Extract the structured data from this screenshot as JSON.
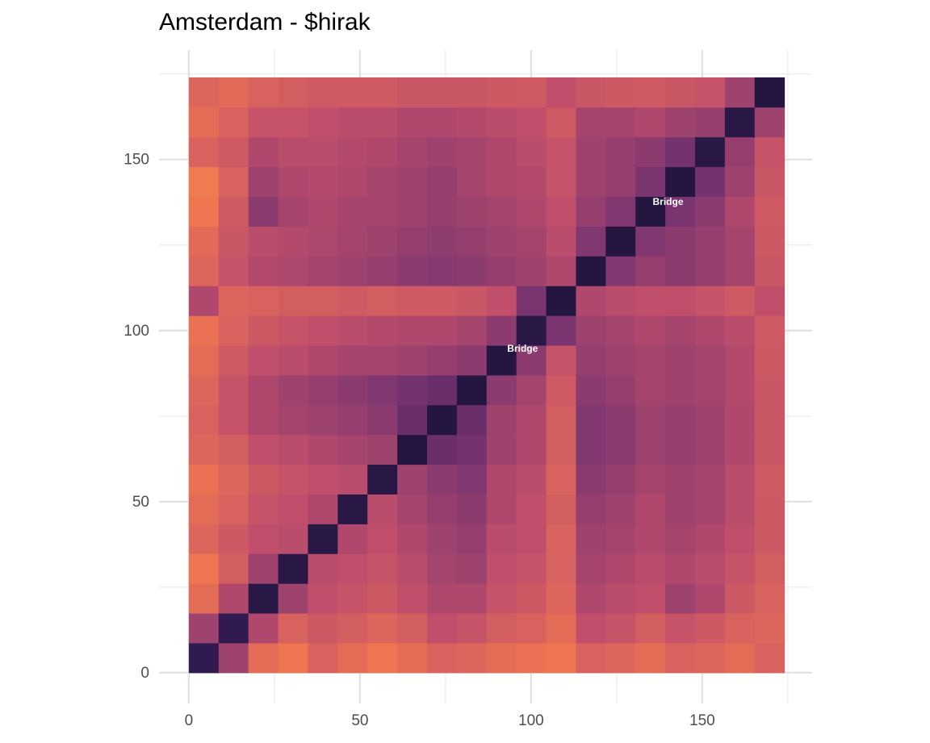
{
  "chart_data": {
    "type": "heatmap",
    "title": "Amsterdam - $hirak",
    "xlim": [
      -8.7,
      182.1
    ],
    "ylim": [
      -9,
      182
    ],
    "xticks": [
      0,
      50,
      100,
      150
    ],
    "yticks": [
      0,
      50,
      100,
      150
    ],
    "xminor": [
      25,
      75,
      125,
      175
    ],
    "yminor": [
      25,
      75,
      125,
      175
    ],
    "grid": true,
    "x_bins": [
      0,
      8.7,
      17.4,
      26.1,
      34.8,
      43.5,
      52.2,
      60.9,
      69.6,
      78.3,
      87,
      95.7,
      104.4,
      113.1,
      121.8,
      130.5,
      139.2,
      147.9,
      156.6,
      165.3,
      174
    ],
    "y_bins": [
      0,
      8.7,
      17.4,
      26.1,
      34.8,
      43.5,
      52.2,
      60.9,
      69.6,
      78.3,
      87,
      95.7,
      104.4,
      113.1,
      121.8,
      130.5,
      139.2,
      147.9,
      156.6,
      165.3,
      174
    ],
    "zlim": [
      0,
      1
    ],
    "colors": [
      "#0f0b26",
      "#3b1f5c",
      "#7a3470",
      "#c14f6b",
      "#ee7550",
      "#fbbf52"
    ],
    "values": [
      [
        0.15,
        0.5,
        0.75,
        0.8,
        0.7,
        0.75,
        0.8,
        0.75,
        0.7,
        0.72,
        0.75,
        0.78,
        0.8,
        0.7,
        0.72,
        0.75,
        0.7,
        0.72,
        0.75,
        0.7
      ],
      [
        0.5,
        0.15,
        0.55,
        0.7,
        0.65,
        0.68,
        0.72,
        0.68,
        0.6,
        0.62,
        0.68,
        0.7,
        0.75,
        0.6,
        0.62,
        0.68,
        0.62,
        0.65,
        0.7,
        0.72
      ],
      [
        0.75,
        0.55,
        0.12,
        0.5,
        0.6,
        0.62,
        0.65,
        0.6,
        0.55,
        0.55,
        0.62,
        0.65,
        0.72,
        0.55,
        0.58,
        0.6,
        0.5,
        0.55,
        0.65,
        0.7
      ],
      [
        0.8,
        0.68,
        0.5,
        0.12,
        0.58,
        0.6,
        0.62,
        0.58,
        0.52,
        0.5,
        0.6,
        0.62,
        0.7,
        0.52,
        0.55,
        0.58,
        0.55,
        0.58,
        0.62,
        0.68
      ],
      [
        0.72,
        0.65,
        0.6,
        0.58,
        0.12,
        0.55,
        0.6,
        0.55,
        0.5,
        0.48,
        0.58,
        0.6,
        0.7,
        0.5,
        0.52,
        0.55,
        0.52,
        0.55,
        0.6,
        0.65
      ],
      [
        0.75,
        0.7,
        0.62,
        0.6,
        0.55,
        0.12,
        0.58,
        0.52,
        0.48,
        0.45,
        0.55,
        0.6,
        0.68,
        0.48,
        0.5,
        0.55,
        0.5,
        0.52,
        0.58,
        0.65
      ],
      [
        0.78,
        0.72,
        0.65,
        0.62,
        0.6,
        0.58,
        0.12,
        0.5,
        0.45,
        0.42,
        0.55,
        0.58,
        0.7,
        0.45,
        0.48,
        0.52,
        0.5,
        0.52,
        0.58,
        0.66
      ],
      [
        0.72,
        0.68,
        0.6,
        0.58,
        0.55,
        0.52,
        0.5,
        0.1,
        0.35,
        0.38,
        0.5,
        0.55,
        0.68,
        0.42,
        0.45,
        0.5,
        0.48,
        0.5,
        0.55,
        0.64
      ],
      [
        0.7,
        0.62,
        0.55,
        0.52,
        0.5,
        0.48,
        0.45,
        0.35,
        0.1,
        0.35,
        0.5,
        0.55,
        0.68,
        0.42,
        0.45,
        0.5,
        0.48,
        0.5,
        0.55,
        0.64
      ],
      [
        0.72,
        0.62,
        0.55,
        0.5,
        0.48,
        0.45,
        0.42,
        0.38,
        0.35,
        0.1,
        0.45,
        0.52,
        0.66,
        0.45,
        0.48,
        0.52,
        0.5,
        0.52,
        0.56,
        0.64
      ],
      [
        0.75,
        0.66,
        0.6,
        0.58,
        0.55,
        0.52,
        0.52,
        0.5,
        0.48,
        0.45,
        0.1,
        0.45,
        0.62,
        0.48,
        0.5,
        0.52,
        0.5,
        0.52,
        0.56,
        0.65
      ],
      [
        0.78,
        0.7,
        0.65,
        0.62,
        0.6,
        0.58,
        0.56,
        0.55,
        0.55,
        0.52,
        0.45,
        0.12,
        0.4,
        0.5,
        0.52,
        0.55,
        0.52,
        0.55,
        0.58,
        0.66
      ],
      [
        0.55,
        0.72,
        0.7,
        0.68,
        0.68,
        0.66,
        0.68,
        0.66,
        0.66,
        0.64,
        0.6,
        0.4,
        0.1,
        0.55,
        0.58,
        0.6,
        0.6,
        0.62,
        0.66,
        0.6
      ],
      [
        0.72,
        0.62,
        0.56,
        0.54,
        0.52,
        0.5,
        0.48,
        0.45,
        0.44,
        0.45,
        0.48,
        0.5,
        0.55,
        0.1,
        0.42,
        0.48,
        0.45,
        0.48,
        0.52,
        0.64
      ],
      [
        0.74,
        0.64,
        0.58,
        0.56,
        0.54,
        0.52,
        0.5,
        0.48,
        0.46,
        0.48,
        0.5,
        0.52,
        0.58,
        0.42,
        0.1,
        0.42,
        0.45,
        0.48,
        0.52,
        0.65
      ],
      [
        0.8,
        0.66,
        0.45,
        0.52,
        0.55,
        0.52,
        0.52,
        0.5,
        0.48,
        0.5,
        0.52,
        0.55,
        0.6,
        0.48,
        0.42,
        0.1,
        0.4,
        0.45,
        0.55,
        0.66
      ],
      [
        0.82,
        0.7,
        0.5,
        0.55,
        0.56,
        0.55,
        0.52,
        0.5,
        0.48,
        0.52,
        0.55,
        0.56,
        0.62,
        0.5,
        0.48,
        0.4,
        0.1,
        0.38,
        0.5,
        0.64
      ],
      [
        0.7,
        0.66,
        0.55,
        0.58,
        0.58,
        0.56,
        0.55,
        0.52,
        0.5,
        0.52,
        0.55,
        0.58,
        0.62,
        0.5,
        0.48,
        0.45,
        0.38,
        0.12,
        0.48,
        0.62
      ],
      [
        0.76,
        0.7,
        0.62,
        0.62,
        0.6,
        0.58,
        0.58,
        0.55,
        0.55,
        0.56,
        0.58,
        0.6,
        0.66,
        0.52,
        0.52,
        0.55,
        0.5,
        0.48,
        0.12,
        0.5
      ],
      [
        0.72,
        0.74,
        0.7,
        0.68,
        0.66,
        0.66,
        0.66,
        0.64,
        0.64,
        0.64,
        0.65,
        0.66,
        0.6,
        0.64,
        0.65,
        0.66,
        0.64,
        0.62,
        0.5,
        0.1
      ]
    ],
    "annotations": [
      {
        "text": "Bridge",
        "x": 97.5,
        "y": 94.5
      },
      {
        "text": "Bridge",
        "x": 140,
        "y": 137.5
      }
    ]
  }
}
